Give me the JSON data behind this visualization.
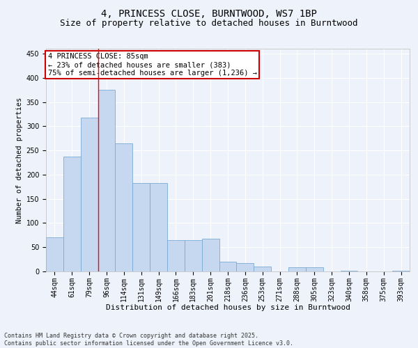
{
  "title_line1": "4, PRINCESS CLOSE, BURNTWOOD, WS7 1BP",
  "title_line2": "Size of property relative to detached houses in Burntwood",
  "xlabel": "Distribution of detached houses by size in Burntwood",
  "ylabel": "Number of detached properties",
  "categories": [
    "44sqm",
    "61sqm",
    "79sqm",
    "96sqm",
    "114sqm",
    "131sqm",
    "149sqm",
    "166sqm",
    "183sqm",
    "201sqm",
    "218sqm",
    "236sqm",
    "253sqm",
    "271sqm",
    "288sqm",
    "305sqm",
    "323sqm",
    "340sqm",
    "358sqm",
    "375sqm",
    "393sqm"
  ],
  "values": [
    70,
    237,
    318,
    375,
    265,
    183,
    183,
    65,
    65,
    68,
    20,
    17,
    10,
    0,
    8,
    8,
    0,
    2,
    0,
    0,
    2
  ],
  "bar_color": "#c5d8f0",
  "bar_edge_color": "#7aaad4",
  "red_line_x": 2.5,
  "annotation_text": "4 PRINCESS CLOSE: 85sqm\n← 23% of detached houses are smaller (383)\n75% of semi-detached houses are larger (1,236) →",
  "annotation_box_color": "#ffffff",
  "annotation_box_edge": "#cc0000",
  "ylim": [
    0,
    460
  ],
  "yticks": [
    0,
    50,
    100,
    150,
    200,
    250,
    300,
    350,
    400,
    450
  ],
  "footer_line1": "Contains HM Land Registry data © Crown copyright and database right 2025.",
  "footer_line2": "Contains public sector information licensed under the Open Government Licence v3.0.",
  "background_color": "#eef2fb",
  "grid_color": "#ffffff",
  "title1_fontsize": 10,
  "title2_fontsize": 9,
  "xlabel_fontsize": 8,
  "ylabel_fontsize": 7.5,
  "tick_fontsize": 7,
  "footer_fontsize": 6,
  "annot_fontsize": 7.5
}
